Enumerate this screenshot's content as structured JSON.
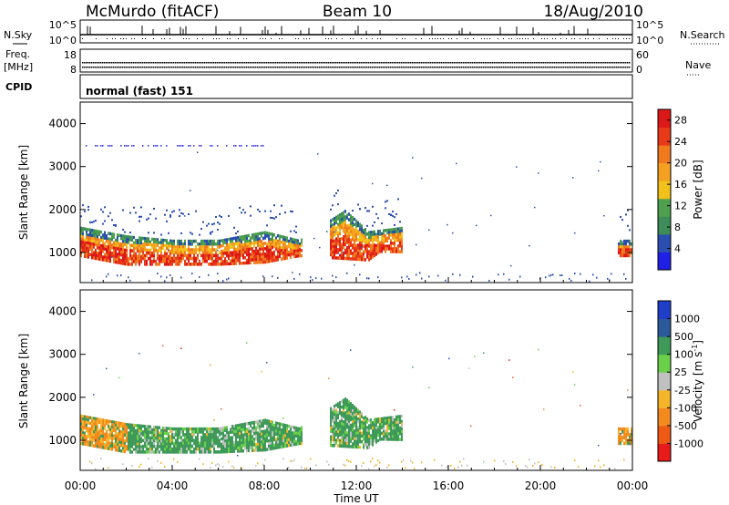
{
  "header": {
    "station": "McMurdo (fitACF)",
    "beam": "Beam 10",
    "date": "18/Aug/2010"
  },
  "strip": {
    "nsky_label": "N.Sky",
    "nsky_ticks": [
      "10^5",
      "10^0"
    ],
    "nsearch_label": "N.Search",
    "nsearch_ticks": [
      "10^5",
      "10^0"
    ],
    "freq_label": "Freq.",
    "freq_unit": "[MHz]",
    "freq_ticks": [
      "18",
      "8"
    ],
    "nave_label": "Nave",
    "nave_ticks": [
      "60",
      "0"
    ],
    "cpid_label": "CPID",
    "cpid_value": "normal (fast) 151"
  },
  "colors": {
    "power_scale": [
      "#1f1fe6",
      "#2a4fb0",
      "#3d8c5a",
      "#4ea04e",
      "#f2c21a",
      "#f5a021",
      "#f07a1e",
      "#e83a18",
      "#dd1818"
    ],
    "velocity_scale": [
      "#e81a1a",
      "#ee5a14",
      "#f38a1e",
      "#f5b52a",
      "#c0c0c0",
      "#6ad04a",
      "#3f9a5a",
      "#2a5a9a",
      "#1f3fc8"
    ]
  },
  "chart_data": [
    {
      "type": "heatmap",
      "name": "power",
      "title": "Beam 10",
      "xlabel": "Time UT",
      "ylabel": "Slant Range [km]",
      "xlim": [
        "00:00",
        "24:00"
      ],
      "ylim": [
        300,
        4500
      ],
      "x_ticks": [
        "00:00",
        "04:00",
        "08:00",
        "12:00",
        "16:00",
        "20:00",
        "00:00"
      ],
      "y_ticks": [
        1000,
        2000,
        3000,
        4000
      ],
      "colorbar": {
        "label": "Power [dB]",
        "ticks": [
          4,
          8,
          12,
          16,
          20,
          24,
          28
        ],
        "range": [
          0,
          30
        ]
      },
      "echo_region": {
        "lower_edge_km": [
          [
            0,
            900
          ],
          [
            2,
            700
          ],
          [
            4,
            700
          ],
          [
            6,
            700
          ],
          [
            8,
            750
          ],
          [
            9.5,
            900
          ],
          [
            12.5,
            800
          ],
          [
            13,
            1000
          ],
          [
            23.3,
            900
          ],
          [
            24,
            900
          ]
        ],
        "upper_edge_km": [
          [
            0,
            1600
          ],
          [
            2,
            1400
          ],
          [
            4,
            1300
          ],
          [
            6,
            1300
          ],
          [
            8,
            1500
          ],
          [
            9.5,
            1300
          ],
          [
            11.5,
            2000
          ],
          [
            12.5,
            1500
          ],
          [
            14,
            1600
          ],
          [
            23.3,
            1300
          ],
          [
            24,
            1300
          ]
        ]
      }
    },
    {
      "type": "heatmap",
      "name": "velocity",
      "xlabel": "Time UT",
      "ylabel": "Slant Range [km]",
      "xlim": [
        "00:00",
        "24:00"
      ],
      "ylim": [
        300,
        4500
      ],
      "x_ticks": [
        "00:00",
        "04:00",
        "08:00",
        "12:00",
        "16:00",
        "20:00",
        "00:00"
      ],
      "y_ticks": [
        1000,
        2000,
        3000,
        4000
      ],
      "colorbar": {
        "label": "Velocity [m s-1]",
        "tick_labels": [
          "1000",
          "500",
          "100",
          "25",
          "-25",
          "-100",
          "-500",
          "-1000"
        ]
      }
    }
  ]
}
